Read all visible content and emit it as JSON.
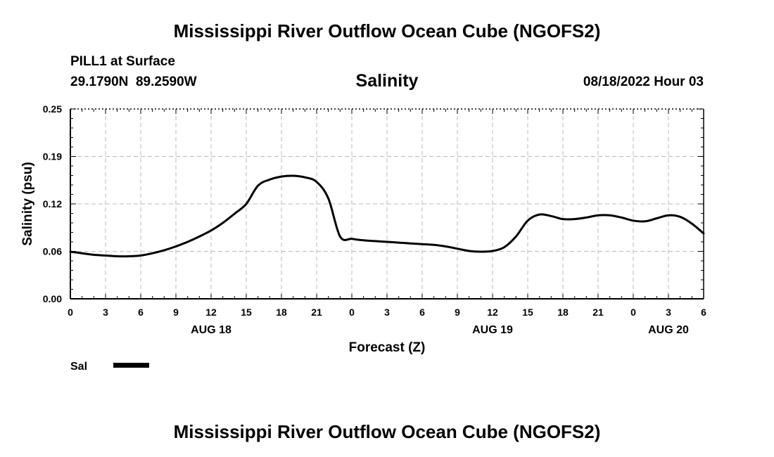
{
  "header": {
    "title": "Mississippi River Outflow Ocean Cube (NGOFS2)",
    "station": "PILL1 at Surface",
    "coords": "29.1790N  89.2590W",
    "datetime": "08/18/2022 Hour 03"
  },
  "footer": {
    "title": "Mississippi River Outflow Ocean Cube (NGOFS2)"
  },
  "colors": {
    "line": "#000000",
    "grid": "#bbbbbb",
    "axis": "#000000",
    "background": "#ffffff"
  },
  "chart_data": {
    "type": "line",
    "title": "Salinity",
    "xlabel": "Forecast (Z)",
    "ylabel": "Salinity (psu)",
    "ylim": [
      0,
      0.25
    ],
    "y_ticks": [
      "0.00",
      "0.06",
      "0.12",
      "0.19",
      "0.25"
    ],
    "y_tick_values": [
      0,
      0.0625,
      0.125,
      0.1875,
      0.25
    ],
    "xlim_hours": [
      0,
      54
    ],
    "x_tick_hours": [
      0,
      3,
      6,
      9,
      12,
      15,
      18,
      21,
      24,
      27,
      30,
      33,
      36,
      39,
      42,
      45,
      48,
      51,
      54
    ],
    "x_tick_labels": [
      "0",
      "3",
      "6",
      "9",
      "12",
      "15",
      "18",
      "21",
      "0",
      "3",
      "6",
      "9",
      "12",
      "15",
      "18",
      "21",
      "0",
      "3",
      "6"
    ],
    "date_labels": [
      {
        "label": "AUG 18",
        "hour": 12
      },
      {
        "label": "AUG 19",
        "hour": 36
      },
      {
        "label": "AUG 20",
        "hour": 51
      }
    ],
    "grid": true,
    "legend_position": "bottom-left",
    "series": [
      {
        "name": "Sal",
        "x_hours": [
          0,
          1,
          2,
          3,
          4,
          5,
          6,
          7,
          8,
          9,
          10,
          11,
          12,
          13,
          14,
          15,
          16,
          17,
          18,
          19,
          20,
          21,
          22,
          23,
          24,
          25,
          26,
          27,
          28,
          29,
          30,
          31,
          32,
          33,
          34,
          35,
          36,
          37,
          38,
          39,
          40,
          41,
          42,
          43,
          44,
          45,
          46,
          47,
          48,
          49,
          50,
          51,
          52,
          53,
          54
        ],
        "values": [
          0.062,
          0.06,
          0.058,
          0.057,
          0.056,
          0.056,
          0.057,
          0.06,
          0.064,
          0.069,
          0.075,
          0.082,
          0.09,
          0.1,
          0.112,
          0.125,
          0.149,
          0.157,
          0.161,
          0.162,
          0.16,
          0.154,
          0.132,
          0.082,
          0.079,
          0.077,
          0.076,
          0.075,
          0.074,
          0.073,
          0.072,
          0.071,
          0.069,
          0.066,
          0.063,
          0.062,
          0.063,
          0.068,
          0.082,
          0.103,
          0.111,
          0.109,
          0.105,
          0.105,
          0.107,
          0.11,
          0.11,
          0.107,
          0.103,
          0.102,
          0.106,
          0.11,
          0.108,
          0.099,
          0.086
        ]
      }
    ]
  }
}
